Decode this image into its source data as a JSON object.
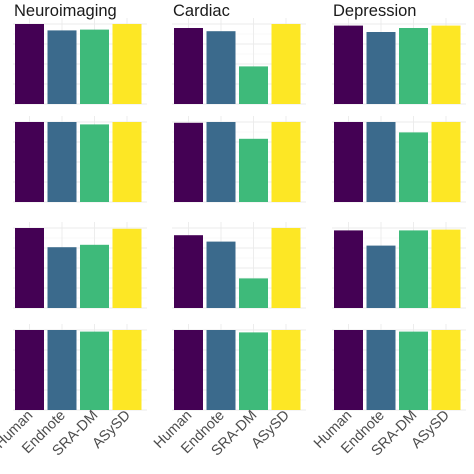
{
  "chart_data": {
    "type": "bar",
    "layout": "facet-grid",
    "categories": [
      "Human",
      "Endnote",
      "SRA-DM",
      "ASySD"
    ],
    "colors": {
      "Human": "#440154",
      "Endnote": "#3B6A8C",
      "SRA-DM": "#3EBA7A",
      "ASySD": "#FDE725"
    },
    "columns": [
      "Neuroimaging",
      "Cardiac",
      "Depression"
    ],
    "rows": 4,
    "panels": [
      [
        {
          "column": "Neuroimaging",
          "values": [
            1.0,
            0.92,
            0.93,
            1.0
          ]
        },
        {
          "column": "Cardiac",
          "values": [
            0.95,
            0.91,
            0.47,
            1.0
          ]
        },
        {
          "column": "Depression",
          "values": [
            0.98,
            0.9,
            0.95,
            0.98
          ]
        }
      ],
      [
        {
          "column": "Neuroimaging",
          "values": [
            1.0,
            1.0,
            0.97,
            1.0
          ]
        },
        {
          "column": "Cardiac",
          "values": [
            0.99,
            1.0,
            0.79,
            1.0
          ]
        },
        {
          "column": "Depression",
          "values": [
            1.0,
            1.0,
            0.87,
            1.0
          ]
        }
      ],
      [
        {
          "column": "Neuroimaging",
          "values": [
            1.0,
            0.76,
            0.79,
            0.99
          ]
        },
        {
          "column": "Cardiac",
          "values": [
            0.91,
            0.83,
            0.37,
            1.0
          ]
        },
        {
          "column": "Depression",
          "values": [
            0.97,
            0.78,
            0.97,
            0.98
          ]
        }
      ],
      [
        {
          "column": "Neuroimaging",
          "values": [
            1.0,
            1.0,
            0.98,
            1.0
          ]
        },
        {
          "column": "Cardiac",
          "values": [
            1.0,
            1.0,
            0.97,
            1.0
          ]
        },
        {
          "column": "Depression",
          "values": [
            1.0,
            1.0,
            0.98,
            1.0
          ]
        }
      ]
    ],
    "ylim": [
      0,
      1
    ],
    "grid": true,
    "legend": "none"
  }
}
